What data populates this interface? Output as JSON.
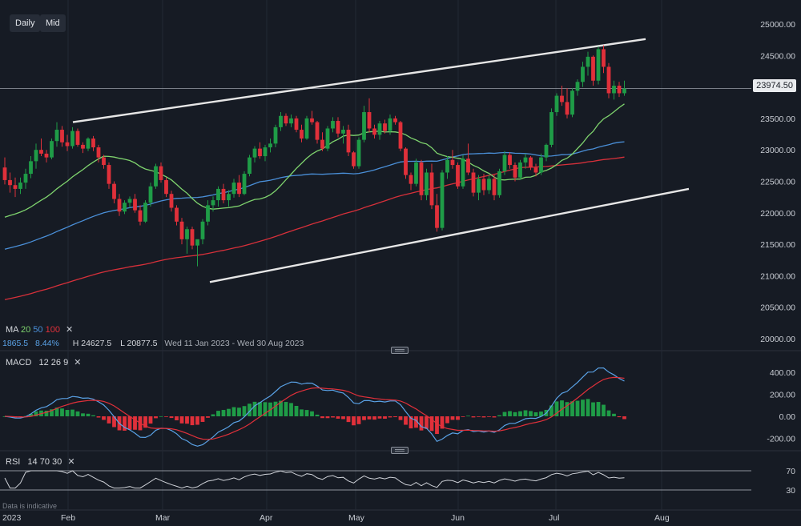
{
  "toolbar": {
    "daily": "Daily",
    "mid": "Mid"
  },
  "price": {
    "current_label": "23974.50"
  },
  "ma_legend": {
    "title": "MA",
    "p1": "20",
    "p2": "50",
    "p3": "100",
    "close": "✕"
  },
  "info": {
    "v1": "1865.5",
    "v2": "8.44%",
    "high": "H 24627.5",
    "low": "L 20877.5",
    "range": "Wed 11 Jan 2023 - Wed 30 Aug 2023"
  },
  "macd_legend": {
    "title": "MACD",
    "a": "12",
    "b": "26",
    "c": "9",
    "close": "✕"
  },
  "rsi_legend": {
    "title": "RSI",
    "a": "14",
    "b": "70",
    "c": "30",
    "close": "✕"
  },
  "footer": {
    "disclaimer": "Data is indicative",
    "year": "2023"
  },
  "colors": {
    "background": "#161b24",
    "up": "#1f9c47",
    "down": "#e0303a",
    "ma20": "#7fd46e",
    "ma50": "#4a8fd8",
    "ma100": "#d6303a",
    "macd": "#5aa2e6",
    "signal": "#e0303a",
    "rsi": "#cfd2d8",
    "channel": "#e6e6e6"
  },
  "chart_data": {
    "type": "candlestick",
    "price_axis": {
      "min": 20000,
      "max": 25000,
      "ticks": [
        "25000.00",
        "24500.00",
        "24000.00",
        "23500.00",
        "23000.00",
        "22500.00",
        "22000.00",
        "21500.00",
        "21000.00",
        "20500.00",
        "20000.00"
      ]
    },
    "macd_axis": {
      "ticks": [
        "400.00",
        "200.00",
        "0.00",
        "-200.00"
      ]
    },
    "rsi_axis": {
      "ticks": [
        "70",
        "30"
      ]
    },
    "x_ticks": [
      "Feb",
      "Mar",
      "Apr",
      "May",
      "Jun",
      "Jul",
      "Aug"
    ],
    "current_price": 23974.5,
    "channel": {
      "upper": [
        [
          "~27 Jan",
          23440
        ],
        [
          "~10 Aug",
          24760
        ]
      ],
      "lower": [
        [
          "~15 Mar",
          20900
        ],
        [
          "~23 Aug",
          22380
        ]
      ]
    },
    "candles_ohlc": [
      [
        22720,
        22880,
        22450,
        22520
      ],
      [
        22520,
        22640,
        22320,
        22440
      ],
      [
        22440,
        22560,
        22250,
        22380
      ],
      [
        22380,
        22560,
        22300,
        22480
      ],
      [
        22480,
        22700,
        22380,
        22620
      ],
      [
        22620,
        22900,
        22550,
        22820
      ],
      [
        22820,
        23100,
        22700,
        23000
      ],
      [
        23000,
        23180,
        22900,
        22940
      ],
      [
        22940,
        23000,
        22800,
        22880
      ],
      [
        22880,
        23180,
        22850,
        23140
      ],
      [
        23140,
        23440,
        23050,
        23320
      ],
      [
        23320,
        23380,
        23050,
        23120
      ],
      [
        23120,
        23240,
        22980,
        23060
      ],
      [
        23060,
        23360,
        23020,
        23300
      ],
      [
        23300,
        23340,
        23050,
        23080
      ],
      [
        23080,
        23120,
        22950,
        23020
      ],
      [
        23020,
        23200,
        22980,
        23180
      ],
      [
        23180,
        23220,
        22980,
        23040
      ],
      [
        23040,
        23080,
        22800,
        22880
      ],
      [
        22880,
        22920,
        22700,
        22760
      ],
      [
        22760,
        22800,
        22380,
        22460
      ],
      [
        22460,
        22500,
        22150,
        22220
      ],
      [
        22220,
        22300,
        21950,
        22020
      ],
      [
        22020,
        22200,
        21980,
        22160
      ],
      [
        22160,
        22260,
        22080,
        22220
      ],
      [
        22220,
        22300,
        22000,
        22040
      ],
      [
        22040,
        22120,
        21800,
        21860
      ],
      [
        21860,
        22200,
        21840,
        22160
      ],
      [
        22160,
        22480,
        22100,
        22420
      ],
      [
        22420,
        22780,
        22380,
        22740
      ],
      [
        22740,
        22800,
        22480,
        22520
      ],
      [
        22520,
        22560,
        22250,
        22300
      ],
      [
        22300,
        22350,
        22020,
        22080
      ],
      [
        22080,
        22120,
        21800,
        21860
      ],
      [
        21860,
        21920,
        21500,
        21580
      ],
      [
        21580,
        21780,
        21350,
        21740
      ],
      [
        21740,
        21780,
        21420,
        21480
      ],
      [
        21480,
        21520,
        21150,
        21580
      ],
      [
        21580,
        21900,
        21500,
        21860
      ],
      [
        21860,
        22200,
        21800,
        22120
      ],
      [
        22120,
        22260,
        22020,
        22200
      ],
      [
        22200,
        22420,
        22100,
        22380
      ],
      [
        22380,
        22460,
        22150,
        22200
      ],
      [
        22200,
        22360,
        22100,
        22300
      ],
      [
        22300,
        22540,
        22240,
        22480
      ],
      [
        22480,
        22600,
        22250,
        22300
      ],
      [
        22300,
        22660,
        22280,
        22620
      ],
      [
        22620,
        22920,
        22580,
        22880
      ],
      [
        22880,
        23060,
        22800,
        23020
      ],
      [
        23020,
        23120,
        22860,
        22900
      ],
      [
        22900,
        23080,
        22820,
        23040
      ],
      [
        23040,
        23180,
        22960,
        23100
      ],
      [
        23100,
        23400,
        23040,
        23360
      ],
      [
        23360,
        23600,
        23300,
        23540
      ],
      [
        23540,
        23580,
        23380,
        23420
      ],
      [
        23420,
        23560,
        23360,
        23500
      ],
      [
        23500,
        23540,
        23280,
        23320
      ],
      [
        23320,
        23400,
        23120,
        23180
      ],
      [
        23180,
        23540,
        23160,
        23500
      ],
      [
        23500,
        23620,
        23400,
        23440
      ],
      [
        23440,
        23460,
        23100,
        23160
      ],
      [
        23160,
        23280,
        22980,
        23020
      ],
      [
        23020,
        23380,
        22980,
        23340
      ],
      [
        23340,
        23520,
        23280,
        23460
      ],
      [
        23460,
        23520,
        23200,
        23260
      ],
      [
        23260,
        23380,
        23100,
        23320
      ],
      [
        23320,
        23400,
        22900,
        22960
      ],
      [
        22960,
        22980,
        22700,
        22740
      ],
      [
        22740,
        23200,
        22700,
        23160
      ],
      [
        23160,
        23700,
        23120,
        23600
      ],
      [
        23600,
        23820,
        23280,
        23340
      ],
      [
        23340,
        23400,
        23180,
        23240
      ],
      [
        23240,
        23460,
        23160,
        23420
      ],
      [
        23420,
        23480,
        23260,
        23300
      ],
      [
        23300,
        23560,
        23240,
        23500
      ],
      [
        23500,
        23540,
        23400,
        23440
      ],
      [
        23440,
        23460,
        22980,
        23020
      ],
      [
        23020,
        23040,
        22540,
        22600
      ],
      [
        22600,
        22640,
        22360,
        22460
      ],
      [
        22460,
        22860,
        22420,
        22800
      ],
      [
        22800,
        22840,
        22200,
        22280
      ],
      [
        22280,
        22700,
        22200,
        22640
      ],
      [
        22640,
        22780,
        22060,
        22120
      ],
      [
        22120,
        22300,
        21700,
        21760
      ],
      [
        21760,
        22680,
        21720,
        22640
      ],
      [
        22640,
        22900,
        22540,
        22840
      ],
      [
        22840,
        23000,
        22700,
        22760
      ],
      [
        22760,
        22800,
        22380,
        22420
      ],
      [
        22420,
        22920,
        22380,
        22860
      ],
      [
        22860,
        23100,
        22600,
        22640
      ],
      [
        22640,
        22700,
        22260,
        22320
      ],
      [
        22320,
        22600,
        22200,
        22540
      ],
      [
        22540,
        22620,
        22280,
        22360
      ],
      [
        22360,
        22600,
        22300,
        22540
      ],
      [
        22540,
        22600,
        22200,
        22280
      ],
      [
        22280,
        22700,
        22240,
        22660
      ],
      [
        22660,
        22980,
        22600,
        22920
      ],
      [
        22920,
        22960,
        22700,
        22760
      ],
      [
        22760,
        22800,
        22500,
        22560
      ],
      [
        22560,
        22840,
        22520,
        22800
      ],
      [
        22800,
        22940,
        22700,
        22880
      ],
      [
        22880,
        22900,
        22680,
        22720
      ],
      [
        22720,
        22780,
        22580,
        22640
      ],
      [
        22640,
        22940,
        22600,
        22880
      ],
      [
        22880,
        23100,
        22820,
        23080
      ],
      [
        23080,
        23660,
        23040,
        23600
      ],
      [
        23600,
        23900,
        23540,
        23860
      ],
      [
        23860,
        24020,
        23700,
        23760
      ],
      [
        23760,
        23980,
        23500,
        23560
      ],
      [
        23560,
        23980,
        23520,
        23940
      ],
      [
        23940,
        24120,
        23860,
        24080
      ],
      [
        24080,
        24400,
        24000,
        24320
      ],
      [
        24320,
        24560,
        24180,
        24480
      ],
      [
        24480,
        24500,
        24020,
        24100
      ],
      [
        24100,
        24640,
        24040,
        24600
      ],
      [
        24600,
        24660,
        24220,
        24320
      ],
      [
        24320,
        24380,
        23820,
        23900
      ],
      [
        23900,
        24100,
        23800,
        24020
      ],
      [
        24020,
        24080,
        23840,
        23900
      ],
      [
        23900,
        24100,
        23860,
        23974
      ]
    ]
  }
}
